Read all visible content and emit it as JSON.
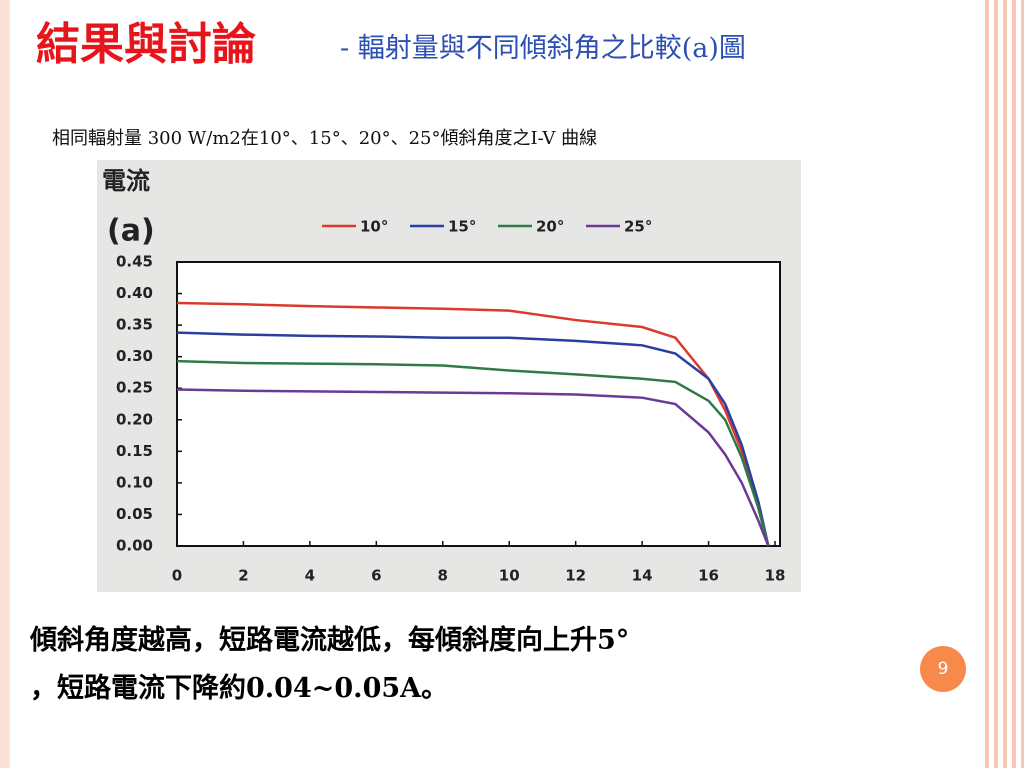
{
  "slide": {
    "title": "結果與討論",
    "subtitle": "- 輻射量與不同傾斜角之比較(a)圖",
    "caption": "相同輻射量 300 W/m2在10°、15°、20°、25°傾斜角度之I-V 曲線",
    "body": [
      "傾斜角度越高，短路電流越低，每傾斜度向上升5°",
      "，短路電流下降約0.04~0.05A。"
    ],
    "page_number": "9"
  },
  "chart_data": {
    "type": "line",
    "y_label": "電流",
    "panel_label": "(a)",
    "x": [
      0,
      2,
      4,
      6,
      8,
      10,
      12,
      14,
      15,
      16,
      16.5,
      17,
      17.5,
      17.8
    ],
    "series": [
      {
        "name": "10°",
        "color": "#d93a2b",
        "values": [
          0.385,
          0.383,
          0.38,
          0.378,
          0.376,
          0.373,
          0.358,
          0.347,
          0.33,
          0.265,
          0.215,
          0.15,
          0.06,
          0
        ]
      },
      {
        "name": "15°",
        "color": "#2a3fa0",
        "values": [
          0.338,
          0.335,
          0.333,
          0.332,
          0.33,
          0.33,
          0.325,
          0.318,
          0.305,
          0.265,
          0.225,
          0.16,
          0.07,
          0
        ]
      },
      {
        "name": "20°",
        "color": "#2f7a45",
        "values": [
          0.293,
          0.29,
          0.289,
          0.288,
          0.286,
          0.278,
          0.272,
          0.265,
          0.26,
          0.23,
          0.2,
          0.14,
          0.06,
          0
        ]
      },
      {
        "name": "25°",
        "color": "#6a3a96",
        "values": [
          0.248,
          0.246,
          0.245,
          0.244,
          0.243,
          0.242,
          0.24,
          0.235,
          0.225,
          0.18,
          0.145,
          0.1,
          0.04,
          0
        ]
      }
    ],
    "xlim": [
      0,
      18
    ],
    "xticks": [
      0,
      2,
      4,
      6,
      8,
      10,
      12,
      14,
      16,
      18
    ],
    "ylim": [
      0,
      0.45
    ],
    "yticks": [
      {
        "value": 0,
        "label": "0.00"
      },
      0.05,
      {
        "value": 0.1,
        "label": "0.10"
      },
      0.15,
      {
        "value": 0.2,
        "label": "0.20"
      },
      0.25,
      {
        "value": 0.3,
        "label": "0.30"
      },
      0.35,
      {
        "value": 0.4,
        "label": "0.40"
      },
      0.45
    ]
  }
}
